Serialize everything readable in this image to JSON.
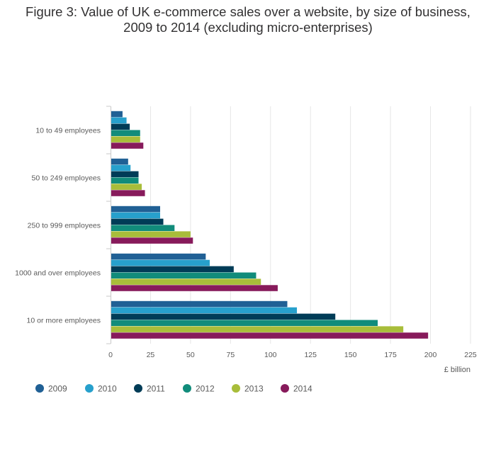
{
  "chart_data": {
    "type": "bar",
    "orientation": "horizontal",
    "title_line1": "Figure 3: Value of UK e-commerce sales over a website, by size of business,",
    "title_line2": "2009 to 2014 (excluding micro-enterprises)",
    "categories": [
      "10 to 49 employees",
      "50 to 249 employees",
      "250 to 999 employees",
      "1000 and over employees",
      "10 or more employees"
    ],
    "series": [
      {
        "name": "2009",
        "color": "#206095",
        "values": [
          7.5,
          11,
          31,
          59.5,
          110.5
        ]
      },
      {
        "name": "2010",
        "color": "#27a0cc",
        "values": [
          10,
          12.5,
          31,
          62,
          116.5
        ]
      },
      {
        "name": "2011",
        "color": "#003c57",
        "values": [
          12,
          17.5,
          33,
          77,
          140.5
        ]
      },
      {
        "name": "2012",
        "color": "#118c7b",
        "values": [
          18.5,
          17.5,
          40,
          91,
          167
        ]
      },
      {
        "name": "2013",
        "color": "#a8bd3a",
        "values": [
          18.5,
          19.5,
          50,
          94,
          183
        ]
      },
      {
        "name": "2014",
        "color": "#871a5b",
        "values": [
          20.5,
          21.5,
          51.5,
          104.5,
          198.5
        ]
      }
    ],
    "xlabel": "£ billion",
    "xlim": [
      0,
      225
    ],
    "xticks": [
      0,
      25,
      50,
      75,
      100,
      125,
      150,
      175,
      200,
      225
    ],
    "grid": true,
    "legend_position": "bottom-left"
  }
}
